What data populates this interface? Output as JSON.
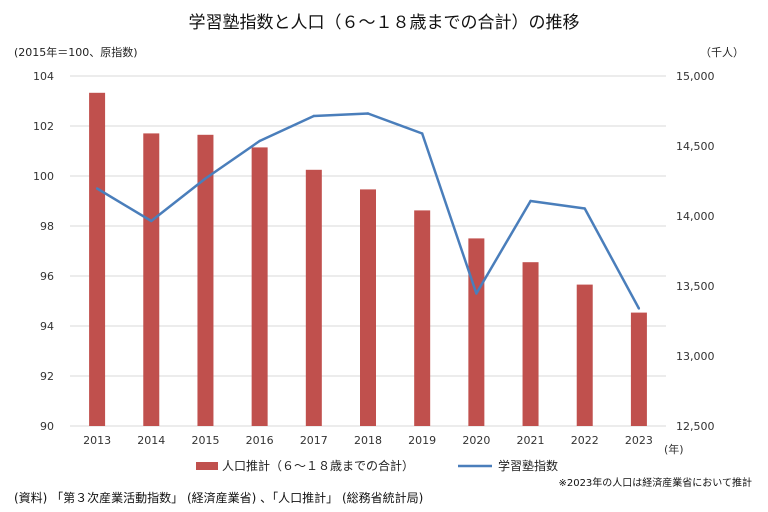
{
  "chart_data": {
    "type": "bar+line",
    "title": "学習塾指数と人口（６～１８歳までの合計）の推移",
    "left_axis_label": "(2015年＝100、原指数)",
    "right_axis_label": "（千人）",
    "x_unit_label": "(年)",
    "categories": [
      "2013",
      "2014",
      "2015",
      "2016",
      "2017",
      "2018",
      "2019",
      "2020",
      "2021",
      "2022",
      "2023"
    ],
    "left_ylim": [
      90,
      104
    ],
    "left_ticks": [
      "90",
      "92",
      "94",
      "96",
      "98",
      "100",
      "102",
      "104"
    ],
    "right_ylim": [
      12500,
      15000
    ],
    "right_ticks": [
      "12,500",
      "13,000",
      "13,500",
      "14,000",
      "14,500",
      "15,000"
    ],
    "grid": true,
    "series": [
      {
        "name": "人口推計（６～１８歳までの合計）",
        "type": "bar",
        "axis": "right",
        "color": "#c0504d",
        "values": [
          14880,
          14590,
          14580,
          14490,
          14330,
          14190,
          14040,
          13840,
          13670,
          13510,
          13310
        ]
      },
      {
        "name": "学習塾指数",
        "type": "line",
        "axis": "left",
        "color": "#4a7ebb",
        "values": [
          99.5,
          98.2,
          99.9,
          101.4,
          102.4,
          102.5,
          101.7,
          95.3,
          99.0,
          98.7,
          94.7
        ]
      }
    ],
    "note": "※2023年の人口は経済産業省において推計",
    "source": "(資料) 「第３次産業活動指数」 (経済産業省) 、「人口推計」 (総務省統計局)"
  }
}
